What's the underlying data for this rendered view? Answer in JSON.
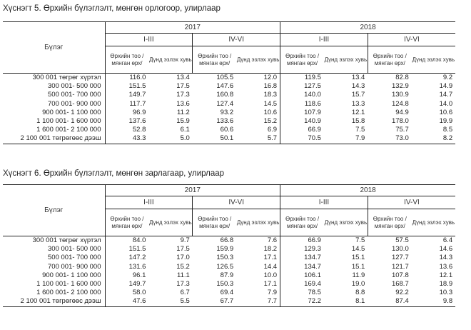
{
  "table5": {
    "title": "Хүснэгт 5. Өрхийн бүлэглэлт, мөнгөн орлогоор, улирлаар",
    "row_header": "Бүлэг",
    "years": [
      "2017",
      "2018"
    ],
    "halves": [
      "I-III",
      "IV-VI",
      "I-III",
      "IV-VI"
    ],
    "col_labels": [
      "Өрхийн тоо /мянган өрх/",
      "Дүнд эзлэх хувь",
      "Өрхийн тоо /мянган өрх/",
      "Дүнд эзлэх хувь",
      "Өрхийн тоо /мянган өрх/",
      "Дүнд эзлэх хувь",
      "Өрхийн тоо /мянган өрх/",
      "Дүнд эзлэх хувь"
    ],
    "rows": [
      {
        "label": "300 001 төгрөг хүртэл",
        "values": [
          "116.0",
          "13.4",
          "105.5",
          "12.0",
          "119.5",
          "13.4",
          "82.8",
          "9.2"
        ]
      },
      {
        "label": "300 001- 500 000",
        "values": [
          "151.5",
          "17.5",
          "147.6",
          "16.8",
          "127.5",
          "14.3",
          "132.9",
          "14.9"
        ]
      },
      {
        "label": "500 001- 700 000",
        "values": [
          "149.7",
          "17.3",
          "160.8",
          "18.3",
          "140.0",
          "15.7",
          "130.9",
          "14.7"
        ]
      },
      {
        "label": "700 001- 900 000",
        "values": [
          "117.7",
          "13.6",
          "127.4",
          "14.5",
          "118.6",
          "13.3",
          "124.8",
          "14.0"
        ]
      },
      {
        "label": "900 001- 1 100 000",
        "values": [
          "96.9",
          "11.2",
          "93.2",
          "10.6",
          "107.9",
          "12.1",
          "94.9",
          "10.6"
        ]
      },
      {
        "label": "1 100 001- 1 600 000",
        "values": [
          "137.6",
          "15.9",
          "133.6",
          "15.2",
          "140.9",
          "15.8",
          "178.0",
          "19.9"
        ]
      },
      {
        "label": "1 600 001- 2 100 000",
        "values": [
          "52.8",
          "6.1",
          "60.6",
          "6.9",
          "66.9",
          "7.5",
          "75.7",
          "8.5"
        ]
      },
      {
        "label": "2 100 001 төгрөгөөс дээш",
        "values": [
          "43.3",
          "5.0",
          "50.1",
          "5.7",
          "70.5",
          "7.9",
          "73.0",
          "8.2"
        ]
      }
    ]
  },
  "table6": {
    "title": "Хүснэгт 6. Өрхийн бүлэглэлт, мөнгөн зарлагаар, улирлаар",
    "row_header": "Бүлэг",
    "years": [
      "2017",
      "2018"
    ],
    "halves": [
      "I-III",
      "IV-VI",
      "I-III",
      "IV-VI"
    ],
    "col_labels": [
      "Өрхийн тоо /мянган өрх/",
      "Дүнд эзлэх хувь",
      "Өрхийн тоо /мянган өрх/",
      "Дүнд эзлэх хувь",
      "Өрхийн тоо /мянган өрх/",
      "Дүнд эзлэх хувь",
      "Өрхийн тоо /мянган өрх/",
      "Дүнд эзлэх хувь"
    ],
    "rows": [
      {
        "label": "300 001 төгрөг хүртэл",
        "values": [
          "84.0",
          "9.7",
          "66.8",
          "7.6",
          "66.9",
          "7.5",
          "57.5",
          "6.4"
        ]
      },
      {
        "label": "300 001- 500 000",
        "values": [
          "151.5",
          "17.5",
          "159.9",
          "18.2",
          "129.3",
          "14.5",
          "130.0",
          "14.6"
        ]
      },
      {
        "label": "500 001- 700 000",
        "values": [
          "147.2",
          "17.0",
          "150.3",
          "17.1",
          "134.7",
          "15.1",
          "127.7",
          "14.3"
        ]
      },
      {
        "label": "700 001- 900 000",
        "values": [
          "131.6",
          "15.2",
          "126.5",
          "14.4",
          "134.7",
          "15.1",
          "121.7",
          "13.6"
        ]
      },
      {
        "label": "900 001- 1 100 000",
        "values": [
          "96.1",
          "11.1",
          "87.9",
          "10.0",
          "106.1",
          "11.9",
          "107.8",
          "12.1"
        ]
      },
      {
        "label": "1 100 001- 1 600 000",
        "values": [
          "149.7",
          "17.3",
          "150.3",
          "17.1",
          "169.4",
          "19.0",
          "168.7",
          "18.9"
        ]
      },
      {
        "label": "1 600 001- 2 100 000",
        "values": [
          "58.0",
          "6.7",
          "69.4",
          "7.9",
          "78.5",
          "8.8",
          "92.2",
          "10.3"
        ]
      },
      {
        "label": "2 100 001 төгрөгөөс дээш",
        "values": [
          "47.6",
          "5.5",
          "67.7",
          "7.7",
          "72.2",
          "8.1",
          "87.4",
          "9.8"
        ]
      }
    ]
  }
}
